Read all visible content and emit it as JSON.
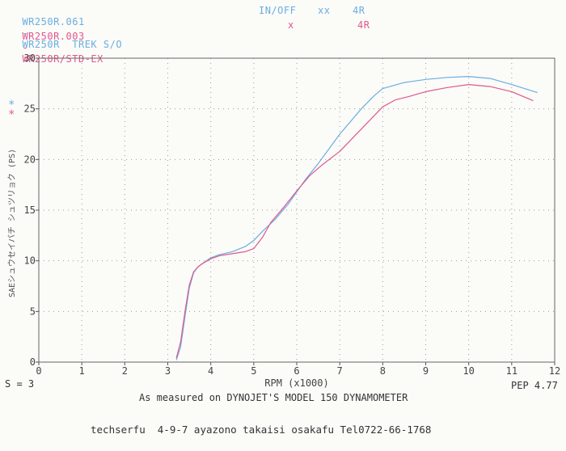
{
  "header": {
    "run1": {
      "file": "WR250R.061",
      "dash": "-",
      "desc": "WR250R  TREK S/O",
      "condition": "IN/OFF",
      "marker": "xx",
      "gear": "4R"
    },
    "run2": {
      "file": "WR250R.003",
      "dash": "-",
      "desc": "WR250R/STD-EX",
      "marker": "x",
      "gear": "4R"
    }
  },
  "legend_markers": {
    "blue": "*",
    "pink": "*"
  },
  "smoothing": "S = 3",
  "pep": "PEP 4.77",
  "caption": "As measured on DYNOJET'S MODEL 150 DYNAMOMETER",
  "address": "techserfu  4-9-7 ayazono takaisi osakafu Tel0722-66-1768",
  "chart_data": {
    "type": "line",
    "xlabel": "RPM (x1000)",
    "ylabel": "SAEシュウセイバチ シュツリョク (PS)",
    "xlim": [
      0,
      12
    ],
    "ylim": [
      0,
      30
    ],
    "xticks": [
      "0",
      "1",
      "2",
      "3",
      "4",
      "5",
      "6",
      "7",
      "8",
      "9",
      "10",
      "11",
      "12"
    ],
    "yticks": [
      "0",
      "5",
      "10",
      "15",
      "20",
      "25",
      "30"
    ],
    "grid": true,
    "series": [
      {
        "name": "WR250R.061",
        "color": "#6aaee0",
        "points": [
          [
            3.2,
            0.2
          ],
          [
            3.3,
            1.5
          ],
          [
            3.4,
            4.5
          ],
          [
            3.5,
            7.3
          ],
          [
            3.6,
            8.8
          ],
          [
            3.7,
            9.4
          ],
          [
            3.8,
            9.7
          ],
          [
            4.0,
            10.3
          ],
          [
            4.2,
            10.6
          ],
          [
            4.5,
            10.9
          ],
          [
            4.8,
            11.4
          ],
          [
            5.0,
            12.0
          ],
          [
            5.2,
            12.9
          ],
          [
            5.5,
            14.1
          ],
          [
            5.8,
            15.6
          ],
          [
            6.0,
            16.8
          ],
          [
            6.2,
            18.0
          ],
          [
            6.5,
            19.6
          ],
          [
            7.0,
            22.5
          ],
          [
            7.5,
            25.0
          ],
          [
            7.8,
            26.3
          ],
          [
            8.0,
            27.0
          ],
          [
            8.5,
            27.6
          ],
          [
            9.0,
            27.9
          ],
          [
            9.5,
            28.1
          ],
          [
            10.0,
            28.2
          ],
          [
            10.5,
            28.0
          ],
          [
            11.0,
            27.4
          ],
          [
            11.6,
            26.6
          ]
        ]
      },
      {
        "name": "WR250R.003",
        "color": "#e0588e",
        "points": [
          [
            3.2,
            0.4
          ],
          [
            3.3,
            2.0
          ],
          [
            3.4,
            5.0
          ],
          [
            3.5,
            7.6
          ],
          [
            3.6,
            8.9
          ],
          [
            3.7,
            9.4
          ],
          [
            3.8,
            9.7
          ],
          [
            4.0,
            10.2
          ],
          [
            4.2,
            10.5
          ],
          [
            4.5,
            10.7
          ],
          [
            4.8,
            10.9
          ],
          [
            5.0,
            11.2
          ],
          [
            5.2,
            12.3
          ],
          [
            5.4,
            13.8
          ],
          [
            5.7,
            15.3
          ],
          [
            6.0,
            16.9
          ],
          [
            6.3,
            18.4
          ],
          [
            6.6,
            19.5
          ],
          [
            7.0,
            20.8
          ],
          [
            7.5,
            23.0
          ],
          [
            8.0,
            25.2
          ],
          [
            8.3,
            25.9
          ],
          [
            8.6,
            26.2
          ],
          [
            9.0,
            26.7
          ],
          [
            9.5,
            27.1
          ],
          [
            10.0,
            27.4
          ],
          [
            10.5,
            27.2
          ],
          [
            11.0,
            26.7
          ],
          [
            11.5,
            25.8
          ]
        ]
      }
    ]
  }
}
